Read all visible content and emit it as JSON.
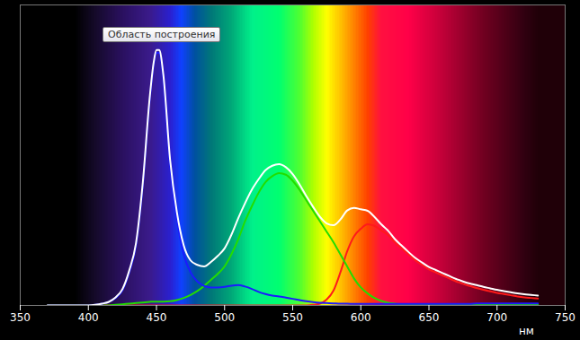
{
  "chart_data": {
    "type": "line",
    "xlabel": "нм",
    "annotations": [
      "Область построения"
    ],
    "xlim": [
      350,
      750
    ],
    "xticks": [
      350,
      400,
      450,
      500,
      550,
      600,
      650,
      700,
      750
    ],
    "ylim": [
      0,
      1
    ],
    "tick_labels": "x",
    "grid": false,
    "x": [
      370,
      375,
      380,
      385,
      390,
      395,
      400,
      405,
      410,
      415,
      420,
      425,
      430,
      435,
      440,
      445,
      448,
      450,
      452,
      455,
      460,
      465,
      470,
      475,
      480,
      485,
      490,
      495,
      500,
      505,
      510,
      515,
      520,
      525,
      530,
      535,
      540,
      545,
      550,
      555,
      560,
      565,
      570,
      575,
      580,
      585,
      590,
      595,
      600,
      605,
      610,
      615,
      620,
      625,
      630,
      635,
      640,
      645,
      650,
      655,
      660,
      665,
      670,
      675,
      680,
      685,
      690,
      695,
      700,
      705,
      710,
      715,
      720,
      725,
      730
    ],
    "series": [
      {
        "color": "#ffffff",
        "values": [
          0,
          0,
          0,
          0,
          0,
          0,
          0,
          0.002,
          0.006,
          0.012,
          0.027,
          0.054,
          0.116,
          0.208,
          0.41,
          0.69,
          0.81,
          0.85,
          0.85,
          0.77,
          0.485,
          0.31,
          0.2,
          0.15,
          0.135,
          0.13,
          0.145,
          0.165,
          0.19,
          0.235,
          0.29,
          0.34,
          0.385,
          0.42,
          0.45,
          0.465,
          0.47,
          0.46,
          0.437,
          0.403,
          0.364,
          0.328,
          0.295,
          0.273,
          0.267,
          0.286,
          0.316,
          0.325,
          0.32,
          0.315,
          0.295,
          0.27,
          0.249,
          0.221,
          0.199,
          0.178,
          0.158,
          0.143,
          0.128,
          0.118,
          0.108,
          0.098,
          0.088,
          0.08,
          0.073,
          0.068,
          0.062,
          0.057,
          0.052,
          0.048,
          0.044,
          0.04,
          0.037,
          0.035,
          0.033
        ]
      },
      {
        "color": "#1a1aff",
        "values": [
          0,
          0,
          0,
          0,
          0,
          0,
          0,
          0.002,
          0.006,
          0.012,
          0.025,
          0.05,
          0.11,
          0.2,
          0.4,
          0.68,
          0.8,
          0.84,
          0.84,
          0.76,
          0.47,
          0.29,
          0.17,
          0.11,
          0.08,
          0.065,
          0.06,
          0.06,
          0.062,
          0.066,
          0.068,
          0.063,
          0.055,
          0.045,
          0.038,
          0.033,
          0.03,
          0.026,
          0.022,
          0.018,
          0.014,
          0.011,
          0.009,
          0.008,
          0.007,
          0.006,
          0.006,
          0.005,
          0.005,
          0.005,
          0.005,
          0.005,
          0.005,
          0.005,
          0.005,
          0.005,
          0.005,
          0.005,
          0.005,
          0.005,
          0.005,
          0.005,
          0.005,
          0.005,
          0.005,
          0.007,
          0.007,
          0.007,
          0.007,
          0.007,
          0.007,
          0.007,
          0.007,
          0.007,
          0.007
        ]
      },
      {
        "color": "#22dd00",
        "values": [
          0,
          0,
          0,
          0,
          0,
          0,
          0,
          0,
          0,
          0,
          0.002,
          0.004,
          0.006,
          0.008,
          0.01,
          0.012,
          0.013,
          0.013,
          0.013,
          0.013,
          0.014,
          0.018,
          0.025,
          0.035,
          0.048,
          0.065,
          0.085,
          0.105,
          0.13,
          0.17,
          0.22,
          0.28,
          0.33,
          0.375,
          0.41,
          0.43,
          0.44,
          0.435,
          0.415,
          0.385,
          0.35,
          0.315,
          0.28,
          0.245,
          0.21,
          0.17,
          0.13,
          0.09,
          0.06,
          0.04,
          0.025,
          0.015,
          0.009,
          0.006,
          0.004,
          0.003,
          0.003,
          0.003,
          0.003,
          0.003,
          0.003,
          0.003,
          0.003,
          0.003,
          0.003,
          0.003,
          0.003,
          0.003,
          0.003,
          0.003,
          0.003,
          0.003,
          0.003,
          0.003,
          0.003
        ]
      },
      {
        "color": "#ff1a1a",
        "values": [
          0,
          0,
          0,
          0,
          0,
          0,
          0,
          0,
          0,
          0,
          0,
          0,
          0,
          0,
          0,
          0,
          0,
          0,
          0,
          0,
          0,
          0,
          0,
          0,
          0,
          0,
          0,
          0,
          0,
          0,
          0,
          0,
          0,
          0,
          0,
          0,
          0,
          0,
          0,
          0,
          0,
          0.002,
          0.006,
          0.02,
          0.05,
          0.11,
          0.18,
          0.23,
          0.255,
          0.27,
          0.265,
          0.25,
          0.235,
          0.21,
          0.19,
          0.17,
          0.15,
          0.135,
          0.12,
          0.11,
          0.1,
          0.09,
          0.08,
          0.072,
          0.065,
          0.058,
          0.052,
          0.047,
          0.042,
          0.038,
          0.034,
          0.03,
          0.027,
          0.025,
          0.023
        ]
      }
    ]
  }
}
